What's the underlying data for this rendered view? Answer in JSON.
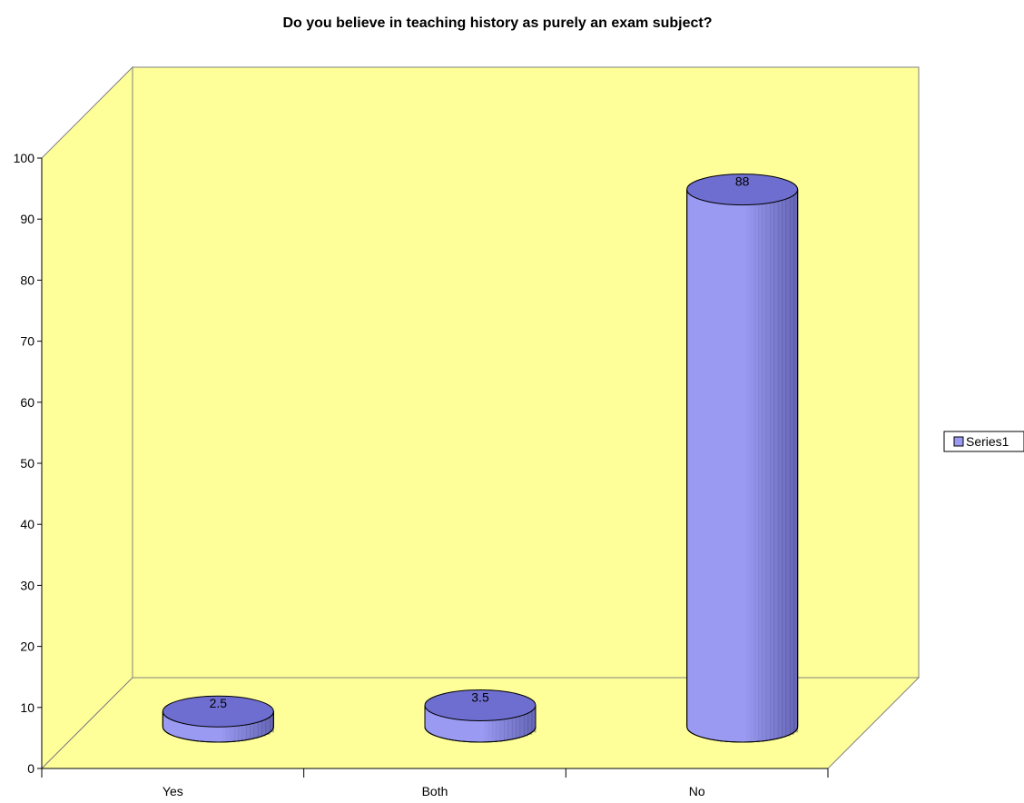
{
  "chart_data": {
    "type": "bar",
    "bar_shape": "cylinder-3d",
    "title": "Do you believe in teaching history as purely an exam subject?",
    "categories": [
      "Yes",
      "Both",
      "No"
    ],
    "series": [
      {
        "name": "Series1",
        "values": [
          2.5,
          3.5,
          88
        ]
      }
    ],
    "data_labels": [
      "2.5",
      "3.5",
      "88"
    ],
    "ylim": [
      0,
      100
    ],
    "y_ticks": [
      0,
      10,
      20,
      30,
      40,
      50,
      60,
      70,
      80,
      90,
      100
    ],
    "xlabel": "",
    "ylabel": "",
    "grid": false,
    "legend_position": "right",
    "colors": {
      "wall": "#ffff99",
      "floor": "#ffff99",
      "bar_body": "#9a9af2",
      "bar_top": "#6e6ed0",
      "outline": "#000000"
    }
  }
}
